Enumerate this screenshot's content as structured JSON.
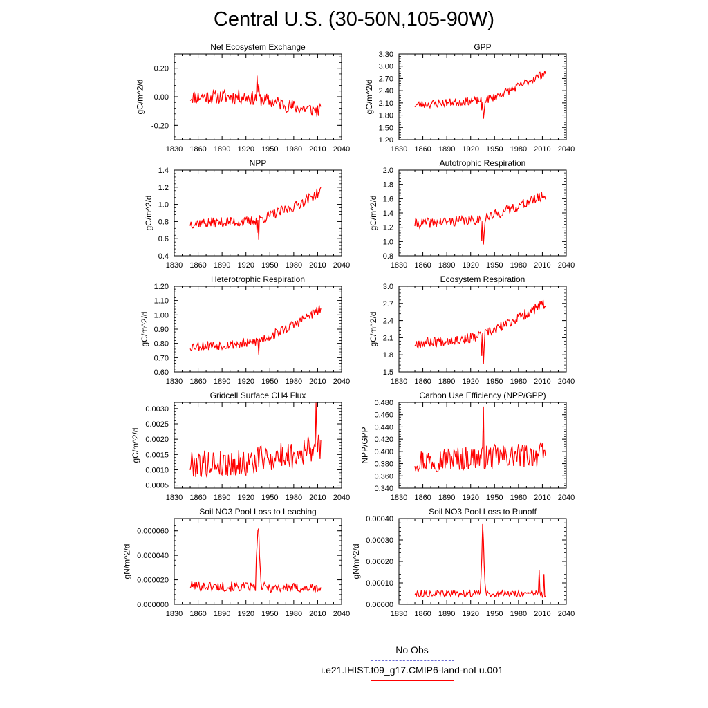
{
  "title": "Central U.S. (30-50N,105-90W)",
  "legend": {
    "obs_label": "No Obs",
    "obs_color": "#6b6bd6",
    "model_label": "i.e21.IHIST.f09_g17.CMIP6-land-noLu.001",
    "model_color": "#ff0000"
  },
  "chart_data": [
    {
      "type": "line",
      "title": "Net Ecosystem Exchange",
      "ylabel": "gC/m^2/d",
      "xlim": [
        1830,
        2040
      ],
      "xticks": [
        1830,
        1860,
        1890,
        1920,
        1950,
        1980,
        2010,
        2040
      ],
      "ylim": [
        -0.3,
        0.3
      ],
      "yticks": [
        "-0.20",
        "0.00",
        "0.20"
      ],
      "series": [
        {
          "x_start": 1850,
          "x_end": 2014,
          "trend": [
            [
              1850,
              0.0
            ],
            [
              1920,
              0.0
            ],
            [
              1950,
              -0.03
            ],
            [
              1980,
              -0.07
            ],
            [
              2014,
              -0.1
            ]
          ],
          "noise": 0.05,
          "events": [
            [
              1934,
              0.18
            ],
            [
              1936,
              0.1
            ]
          ],
          "seed": 11
        }
      ]
    },
    {
      "type": "line",
      "title": "GPP",
      "ylabel": "gC/m^2/d",
      "xlim": [
        1830,
        2040
      ],
      "xticks": [
        1830,
        1860,
        1890,
        1920,
        1950,
        1980,
        2010,
        2040
      ],
      "ylim": [
        1.2,
        3.3
      ],
      "yticks": [
        "1.20",
        "1.50",
        "1.80",
        "2.10",
        "2.40",
        "2.70",
        "3.00",
        "3.30"
      ],
      "series": [
        {
          "x_start": 1850,
          "x_end": 2014,
          "trend": [
            [
              1850,
              2.05
            ],
            [
              1925,
              2.15
            ],
            [
              1945,
              2.2
            ],
            [
              1980,
              2.5
            ],
            [
              2014,
              2.85
            ]
          ],
          "noise": 0.1,
          "events": [
            [
              1934,
              -0.35
            ],
            [
              1936,
              -0.5
            ],
            [
              1937,
              -0.3
            ]
          ],
          "seed": 23
        }
      ]
    },
    {
      "type": "line",
      "title": "NPP",
      "ylabel": "gC/m^2/d",
      "xlim": [
        1830,
        2040
      ],
      "xticks": [
        1830,
        1860,
        1890,
        1920,
        1950,
        1980,
        2010,
        2040
      ],
      "ylim": [
        0.4,
        1.4
      ],
      "yticks": [
        "0.4",
        "0.6",
        "0.8",
        "1.0",
        "1.2",
        "1.4"
      ],
      "series": [
        {
          "x_start": 1850,
          "x_end": 2014,
          "trend": [
            [
              1850,
              0.78
            ],
            [
              1925,
              0.8
            ],
            [
              1945,
              0.85
            ],
            [
              1980,
              0.97
            ],
            [
              2014,
              1.15
            ]
          ],
          "noise": 0.06,
          "events": [
            [
              1934,
              -0.15
            ],
            [
              1936,
              -0.22
            ]
          ],
          "seed": 37
        }
      ]
    },
    {
      "type": "line",
      "title": "Autotrophic Respiration",
      "ylabel": "gC/m^2/d",
      "xlim": [
        1830,
        2040
      ],
      "xticks": [
        1830,
        1860,
        1890,
        1920,
        1950,
        1980,
        2010,
        2040
      ],
      "ylim": [
        0.8,
        2.0
      ],
      "yticks": [
        "0.8",
        "1.0",
        "1.2",
        "1.4",
        "1.6",
        "1.8",
        "2.0"
      ],
      "series": [
        {
          "x_start": 1850,
          "x_end": 2014,
          "trend": [
            [
              1850,
              1.25
            ],
            [
              1925,
              1.3
            ],
            [
              1945,
              1.35
            ],
            [
              1980,
              1.5
            ],
            [
              2014,
              1.65
            ]
          ],
          "noise": 0.07,
          "events": [
            [
              1934,
              -0.25
            ],
            [
              1936,
              -0.35
            ],
            [
              1937,
              -0.25
            ]
          ],
          "seed": 41
        }
      ]
    },
    {
      "type": "line",
      "title": "Heterotrophic Respiration",
      "ylabel": "gC/m^2/d",
      "xlim": [
        1830,
        2040
      ],
      "xticks": [
        1830,
        1860,
        1890,
        1920,
        1950,
        1980,
        2010,
        2040
      ],
      "ylim": [
        0.6,
        1.2
      ],
      "yticks": [
        "0.60",
        "0.70",
        "0.80",
        "0.90",
        "1.00",
        "1.10",
        "1.20"
      ],
      "series": [
        {
          "x_start": 1850,
          "x_end": 2014,
          "trend": [
            [
              1850,
              0.78
            ],
            [
              1925,
              0.8
            ],
            [
              1950,
              0.85
            ],
            [
              1980,
              0.93
            ],
            [
              2014,
              1.04
            ]
          ],
          "noise": 0.035,
          "events": [
            [
              1936,
              -0.1
            ]
          ],
          "seed": 53
        }
      ]
    },
    {
      "type": "line",
      "title": "Ecosystem Respiration",
      "ylabel": "gC/m^2/d",
      "xlim": [
        1830,
        2040
      ],
      "xticks": [
        1830,
        1860,
        1890,
        1920,
        1950,
        1980,
        2010,
        2040
      ],
      "ylim": [
        1.5,
        3.0
      ],
      "yticks": [
        "1.5",
        "1.8",
        "2.1",
        "2.4",
        "2.7",
        "3.0"
      ],
      "series": [
        {
          "x_start": 1850,
          "x_end": 2014,
          "trend": [
            [
              1850,
              2.0
            ],
            [
              1925,
              2.1
            ],
            [
              1945,
              2.2
            ],
            [
              1980,
              2.45
            ],
            [
              2014,
              2.7
            ]
          ],
          "noise": 0.09,
          "events": [
            [
              1934,
              -0.3
            ],
            [
              1936,
              -0.45
            ],
            [
              1937,
              -0.3
            ]
          ],
          "seed": 67
        }
      ]
    },
    {
      "type": "line",
      "title": "Gridcell Surface CH4 Flux",
      "ylabel": "gC/m^2/d",
      "xlim": [
        1830,
        2040
      ],
      "xticks": [
        1830,
        1860,
        1890,
        1920,
        1950,
        1980,
        2010,
        2040
      ],
      "ylim": [
        0.0004,
        0.0032
      ],
      "yticks": [
        "0.0005",
        "0.0010",
        "0.0015",
        "0.0020",
        "0.0025",
        "0.0030"
      ],
      "series": [
        {
          "x_start": 1850,
          "x_end": 2014,
          "trend": [
            [
              1850,
              0.0012
            ],
            [
              1920,
              0.0012
            ],
            [
              1950,
              0.0014
            ],
            [
              1980,
              0.0015
            ],
            [
              2014,
              0.0018
            ]
          ],
          "noise": 0.00045,
          "events": [
            [
              1938,
              0.0008
            ],
            [
              2008,
              0.0012
            ]
          ],
          "seed": 79
        }
      ]
    },
    {
      "type": "line",
      "title": "Carbon Use Efficiency (NPP/GPP)",
      "ylabel": "NPP/GPP",
      "xlim": [
        1830,
        2040
      ],
      "xticks": [
        1830,
        1860,
        1890,
        1920,
        1950,
        1980,
        2010,
        2040
      ],
      "ylim": [
        0.34,
        0.48
      ],
      "yticks": [
        "0.340",
        "0.360",
        "0.380",
        "0.400",
        "0.420",
        "0.440",
        "0.460",
        "0.480"
      ],
      "series": [
        {
          "x_start": 1850,
          "x_end": 2014,
          "trend": [
            [
              1850,
              0.385
            ],
            [
              2014,
              0.395
            ]
          ],
          "noise": 0.02,
          "events": [
            [
              1936,
              0.065
            ]
          ],
          "seed": 97
        }
      ]
    },
    {
      "type": "line",
      "title": "Soil NO3 Pool Loss to Leaching",
      "ylabel": "gN/m^2/d",
      "xlim": [
        1830,
        2040
      ],
      "xticks": [
        1830,
        1860,
        1890,
        1920,
        1950,
        1980,
        2010,
        2040
      ],
      "ylim": [
        0.0,
        7e-05
      ],
      "yticks": [
        "0.000000",
        "0.000020",
        "0.000040",
        "0.000060"
      ],
      "series": [
        {
          "x_start": 1850,
          "x_end": 2014,
          "trend": [
            [
              1850,
              1.5e-05
            ],
            [
              2014,
              1.3e-05
            ]
          ],
          "noise": 4e-06,
          "events": [
            [
              1933,
              2e-05
            ],
            [
              1934,
              3.5e-05
            ],
            [
              1935,
              4.5e-05
            ],
            [
              1936,
              4.4e-05
            ],
            [
              1937,
              3e-05
            ],
            [
              1938,
              1.5e-05
            ]
          ],
          "seed": 101
        }
      ]
    },
    {
      "type": "line",
      "title": "Soil NO3 Pool Loss to Runoff",
      "ylabel": "gN/m^2/d",
      "xlim": [
        1830,
        2040
      ],
      "xticks": [
        1830,
        1860,
        1890,
        1920,
        1950,
        1980,
        2010,
        2040
      ],
      "ylim": [
        0.0,
        0.0004
      ],
      "yticks": [
        "0.00000",
        "0.00010",
        "0.00020",
        "0.00030",
        "0.00040"
      ],
      "series": [
        {
          "x_start": 1850,
          "x_end": 2014,
          "trend": [
            [
              1850,
              5e-05
            ],
            [
              2014,
              5e-05
            ]
          ],
          "noise": 1.5e-05,
          "events": [
            [
              1933,
              8e-05
            ],
            [
              1934,
              0.00018
            ],
            [
              1935,
              0.00031
            ],
            [
              1936,
              0.00026
            ],
            [
              1937,
              0.00012
            ],
            [
              1938,
              4e-05
            ],
            [
              2006,
              0.00012
            ],
            [
              2012,
              0.0001
            ]
          ],
          "seed": 113
        }
      ]
    }
  ]
}
